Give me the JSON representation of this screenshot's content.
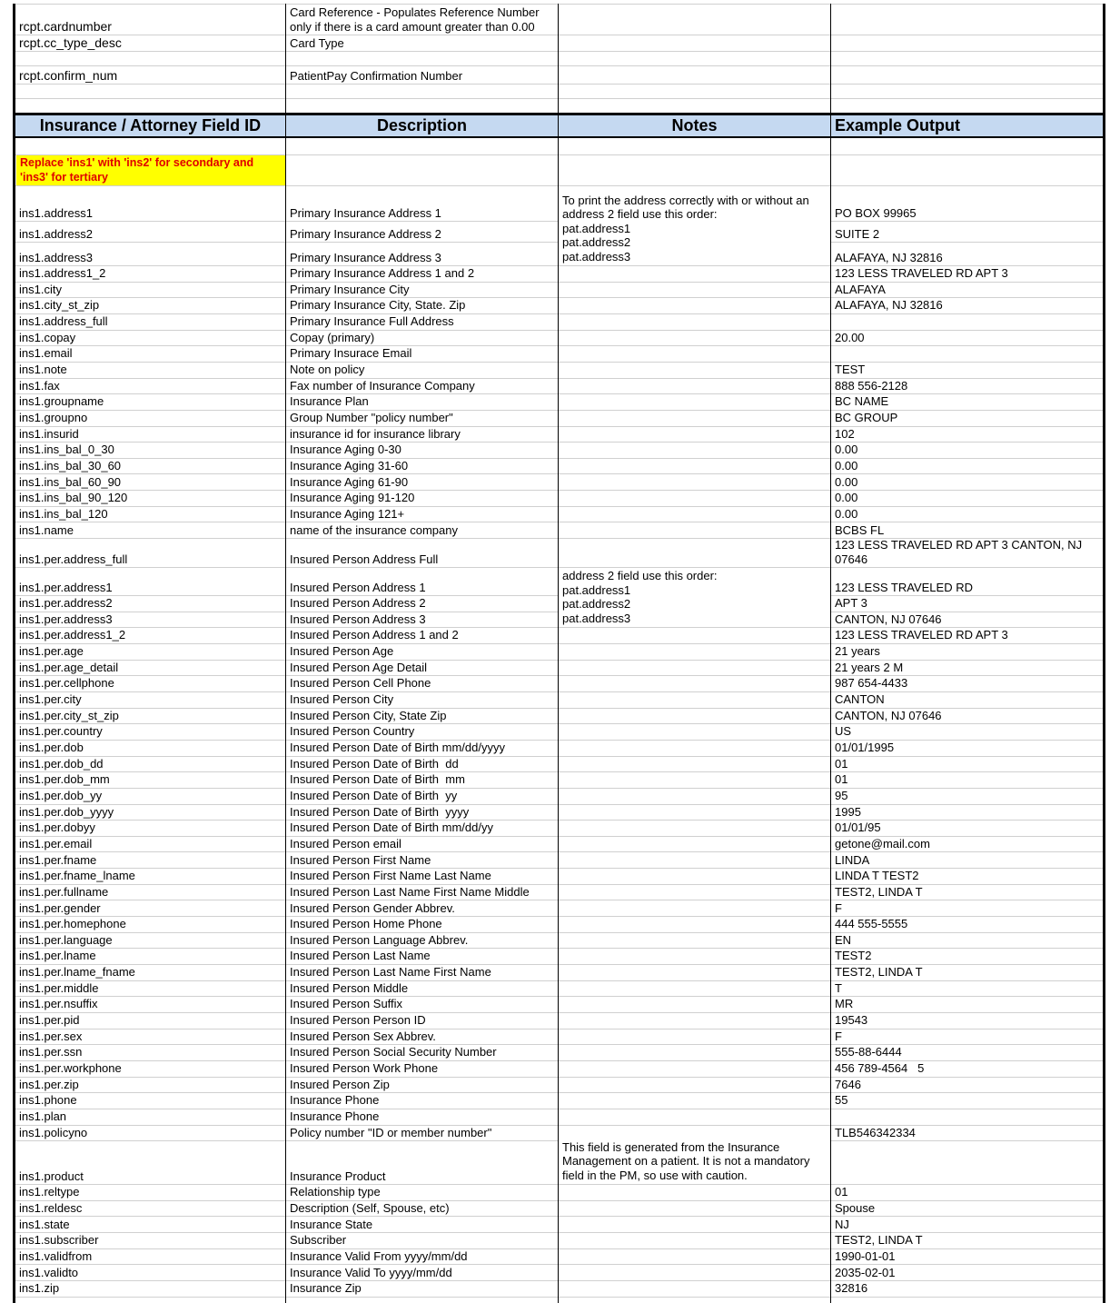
{
  "top_rows": [
    {
      "field": "rcpt.cardnumber",
      "description": "Card Reference - Populates Reference Number only if there is a card amount greater than 0.00"
    },
    {
      "field": "rcpt.cc_type_desc",
      "description": "Card Type"
    },
    {
      "field": "rcpt.confirm_num",
      "description": "PatientPay Confirmation Number"
    }
  ],
  "header": [
    "Insurance / Attorney Field ID",
    "Description",
    "Notes",
    "Example Output"
  ],
  "note": "Replace 'ins1' with 'ins2' for secondary and 'ins3' for tertiary",
  "rows": [
    {
      "field": "ins1.address1",
      "description": "Primary Insurance Address 1",
      "example": "PO BOX 99965"
    },
    {
      "field": "ins1.address2",
      "description": "Primary Insurance Address 2",
      "example": "SUITE 2"
    },
    {
      "field": "ins1.address3",
      "description": "Primary Insurance Address 3",
      "example": "ALAFAYA, NJ 32816",
      "notes": "To print the address correctly with or without an address 2 field use this order:\npat.address1\npat.address2\npat.address3"
    },
    {
      "field": "ins1.address1_2",
      "description": "Primary Insurance Address 1 and 2",
      "example": "123 LESS TRAVELED RD APT 3"
    },
    {
      "field": "ins1.city",
      "description": "Primary Insurance City",
      "example": "ALAFAYA"
    },
    {
      "field": "ins1.city_st_zip",
      "description": "Primary Insurance City, State. Zip",
      "example": "ALAFAYA, NJ 32816"
    },
    {
      "field": "ins1.address_full",
      "description": "Primary Insurance Full Address"
    },
    {
      "field": "ins1.copay",
      "description": "Copay (primary)",
      "example": "20.00"
    },
    {
      "field": "ins1.email",
      "description": "Primary Insurace Email"
    },
    {
      "field": "ins1.note",
      "description": "Note on policy",
      "example": "TEST"
    },
    {
      "field": "ins1.fax",
      "description": "Fax number of Insurance Company",
      "example": "888 556-2128"
    },
    {
      "field": "ins1.groupname",
      "description": "Insurance Plan",
      "example": "BC NAME"
    },
    {
      "field": "ins1.groupno",
      "description": "Group Number \"policy number\"",
      "example": "BC GROUP"
    },
    {
      "field": "ins1.insurid",
      "description": "insurance id for insurance library",
      "example": "102"
    },
    {
      "field": "ins1.ins_bal_0_30",
      "description": "Insurance Aging 0-30",
      "example": "0.00"
    },
    {
      "field": "ins1.ins_bal_30_60",
      "description": "Insurance Aging 31-60",
      "example": "0.00"
    },
    {
      "field": "ins1.ins_bal_60_90",
      "description": "Insurance Aging 61-90",
      "example": "0.00"
    },
    {
      "field": "ins1.ins_bal_90_120",
      "description": "Insurance Aging 91-120",
      "example": "0.00"
    },
    {
      "field": "ins1.ins_bal_120",
      "description": "Insurance Aging 121+",
      "example": "0.00"
    },
    {
      "field": "ins1.name",
      "description": "name of the insurance company",
      "example": "BCBS FL"
    },
    {
      "field": "ins1.per.address_full",
      "description": "Insured Person Address Full",
      "example": "123 LESS TRAVELED RD APT 3 CANTON, NJ 07646"
    },
    {
      "field": "ins1.per.address1",
      "description": "Insured Person Address 1",
      "example": "123 LESS TRAVELED RD"
    },
    {
      "field": "ins1.per.address2",
      "description": "Insured Person Address 2",
      "example": "APT 3"
    },
    {
      "field": "ins1.per.address3",
      "description": "Insured Person Address 3",
      "example": "CANTON, NJ 07646",
      "notes": "address 2 field use this order:\npat.address1\npat.address2\npat.address3"
    },
    {
      "field": "ins1.per.address1_2",
      "description": "Insured Person Address 1 and 2",
      "example": "123 LESS TRAVELED RD APT 3"
    },
    {
      "field": "ins1.per.age",
      "description": "Insured Person Age",
      "example": "21 years"
    },
    {
      "field": "ins1.per.age_detail",
      "description": "Insured Person Age Detail",
      "example": "21 years 2 M"
    },
    {
      "field": "ins1.per.cellphone",
      "description": "Insured Person Cell Phone",
      "example": "987 654-4433"
    },
    {
      "field": "ins1.per.city",
      "description": "Insured Person City",
      "example": "CANTON"
    },
    {
      "field": "ins1.per.city_st_zip",
      "description": "Insured Person City, State Zip",
      "example": "CANTON, NJ 07646"
    },
    {
      "field": "ins1.per.country",
      "description": "Insured Person Country",
      "example": "US"
    },
    {
      "field": "ins1.per.dob",
      "description": "Insured Person Date of Birth mm/dd/yyyy",
      "example": "01/01/1995"
    },
    {
      "field": "ins1.per.dob_dd",
      "description": "Insured Person Date of Birth  dd",
      "example": "01"
    },
    {
      "field": "ins1.per.dob_mm",
      "description": "Insured Person Date of Birth  mm",
      "example": "01"
    },
    {
      "field": "ins1.per.dob_yy",
      "description": "Insured Person Date of Birth  yy",
      "example": "95"
    },
    {
      "field": "ins1.per.dob_yyyy",
      "description": "Insured Person Date of Birth  yyyy",
      "example": "1995"
    },
    {
      "field": "ins1.per.dobyy",
      "description": "Insured Person Date of Birth mm/dd/yy",
      "example": "01/01/95"
    },
    {
      "field": "ins1.per.email",
      "description": "Insured Person email",
      "example": "getone@mail.com"
    },
    {
      "field": "ins1.per.fname",
      "description": "Insured Person First Name",
      "example": "LINDA"
    },
    {
      "field": "ins1.per.fname_lname",
      "description": "Insured Person First Name Last Name",
      "example": "LINDA T TEST2"
    },
    {
      "field": "ins1.per.fullname",
      "description": "Insured Person Last Name First Name Middle",
      "example": "TEST2, LINDA T"
    },
    {
      "field": "ins1.per.gender",
      "description": "Insured Person Gender Abbrev.",
      "example": "F"
    },
    {
      "field": "ins1.per.homephone",
      "description": "Insured Person Home Phone",
      "example": "444 555-5555"
    },
    {
      "field": "ins1.per.language",
      "description": "Insured Person Language Abbrev.",
      "example": "EN"
    },
    {
      "field": "ins1.per.lname",
      "description": "Insured Person Last Name",
      "example": "TEST2"
    },
    {
      "field": "ins1.per.lname_fname",
      "description": "Insured Person Last Name First Name",
      "example": "TEST2, LINDA T"
    },
    {
      "field": "ins1.per.middle",
      "description": "Insured Person Middle",
      "example": "T"
    },
    {
      "field": "ins1.per.nsuffix",
      "description": "Insured Person Suffix",
      "example": "MR"
    },
    {
      "field": "ins1.per.pid",
      "description": "Insured Person Person ID",
      "example": "19543"
    },
    {
      "field": "ins1.per.sex",
      "description": "Insured Person Sex Abbrev.",
      "example": "F"
    },
    {
      "field": "ins1.per.ssn",
      "description": "Insured Person Social Security Number",
      "example": "555-88-6444"
    },
    {
      "field": "ins1.per.workphone",
      "description": "Insured Person Work Phone",
      "example": "456 789-4564   5"
    },
    {
      "field": "ins1.per.zip",
      "description": "Insured Person Zip",
      "example": "7646"
    },
    {
      "field": "ins1.phone",
      "description": "Insurance Phone",
      "example": "55"
    },
    {
      "field": "ins1.plan",
      "description": "Insurance Phone"
    },
    {
      "field": "ins1.policyno",
      "description": "Policy number \"ID or member number\"",
      "example": "TLB546342334"
    },
    {
      "field": "ins1.product",
      "description": "Insurance Product",
      "notes": "This field is generated from the Insurance Management on a patient.  It is not a mandatory field in the PM, so use with caution."
    },
    {
      "field": "ins1.reltype",
      "description": "Relationship type",
      "example": "01"
    },
    {
      "field": "ins1.reldesc",
      "description": "Description (Self, Spouse, etc)",
      "example": "Spouse"
    },
    {
      "field": "ins1.state",
      "description": "Insurance State",
      "example": "NJ"
    },
    {
      "field": "ins1.subscriber",
      "description": "Subscriber",
      "example": "TEST2, LINDA T"
    },
    {
      "field": "ins1.validfrom",
      "description": "Insurance Valid From yyyy/mm/dd",
      "example": "1990-01-01"
    },
    {
      "field": "ins1.validto",
      "description": "Insurance Valid To yyyy/mm/dd",
      "example": "2035-02-01"
    },
    {
      "field": "ins1.zip",
      "description": "Insurance Zip",
      "example": "32816"
    }
  ]
}
